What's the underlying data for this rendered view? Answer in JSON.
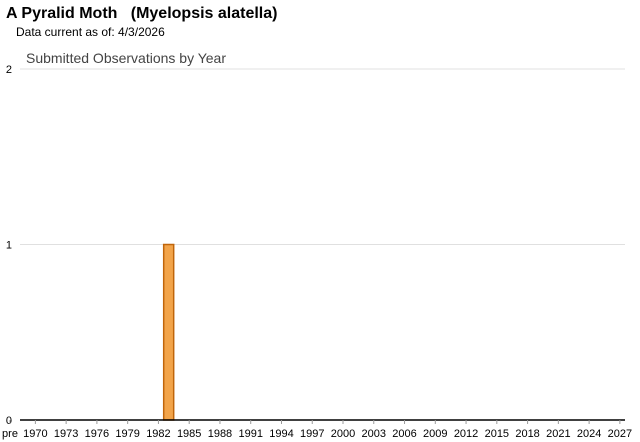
{
  "header": {
    "title": "A Pyralid Moth   (Myelopsis alatella)",
    "data_current": "Data current as of: 4/3/2026"
  },
  "chart_data": {
    "type": "bar",
    "title": "Submitted Observations by Year",
    "xlabel": "",
    "ylabel": "",
    "categories": [
      "pre",
      "1970",
      "1971",
      "1972",
      "1973",
      "1974",
      "1975",
      "1976",
      "1977",
      "1978",
      "1979",
      "1980",
      "1981",
      "1982",
      "1983",
      "1984",
      "1985",
      "1986",
      "1987",
      "1988",
      "1989",
      "1990",
      "1991",
      "1992",
      "1993",
      "1994",
      "1995",
      "1996",
      "1997",
      "1998",
      "1999",
      "2000",
      "2001",
      "2002",
      "2003",
      "2004",
      "2005",
      "2006",
      "2007",
      "2008",
      "2009",
      "2010",
      "2011",
      "2012",
      "2013",
      "2014",
      "2015",
      "2016",
      "2017",
      "2018",
      "2019",
      "2020",
      "2021",
      "2022",
      "2023",
      "2024",
      "2025",
      "2026",
      "2027"
    ],
    "tick_labels": [
      "pre",
      "1970",
      "1973",
      "1976",
      "1979",
      "1982",
      "1985",
      "1988",
      "1991",
      "1994",
      "1997",
      "2000",
      "2003",
      "2006",
      "2009",
      "2012",
      "2015",
      "2018",
      "2021",
      "2024",
      "2027"
    ],
    "values": {
      "1983": 1
    },
    "ylim": [
      0,
      2
    ],
    "yticks": [
      "0",
      "1",
      "2"
    ],
    "grid": true,
    "colors": {
      "bar": "#f2a44a",
      "bar_border": "#c0650a",
      "grid": "#e0e0e0"
    }
  }
}
